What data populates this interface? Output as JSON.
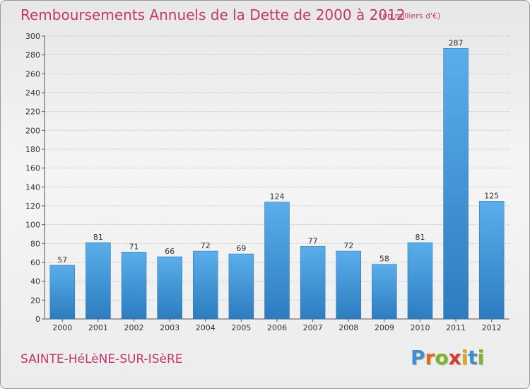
{
  "chart_data": {
    "type": "bar",
    "title": "Remboursements Annuels de la Dette de 2000 à 2012",
    "units": "(en milliers d'€)",
    "categories": [
      "2000",
      "2001",
      "2002",
      "2003",
      "2004",
      "2005",
      "2006",
      "2007",
      "2008",
      "2009",
      "2010",
      "2011",
      "2012"
    ],
    "values": [
      57,
      81,
      71,
      66,
      72,
      69,
      124,
      77,
      72,
      58,
      81,
      287,
      125
    ],
    "ylim": [
      0,
      300
    ],
    "yticks": [
      0,
      20,
      40,
      60,
      80,
      100,
      120,
      140,
      160,
      180,
      200,
      220,
      240,
      260,
      280,
      300
    ],
    "grid": true,
    "xlabel": "",
    "ylabel": "",
    "bar_color": "#3a8fd6",
    "title_color": "#c8346e"
  },
  "footer": {
    "commune": "SAINTE-HéLèNE-SUR-ISèRE"
  },
  "logo": {
    "text": "Proxiti",
    "letter_colors": [
      "#3d8fd1",
      "#e06b1f",
      "#7ab52e",
      "#d93a2b",
      "#e0a21f",
      "#3d8fd1",
      "#7ab52e"
    ]
  }
}
